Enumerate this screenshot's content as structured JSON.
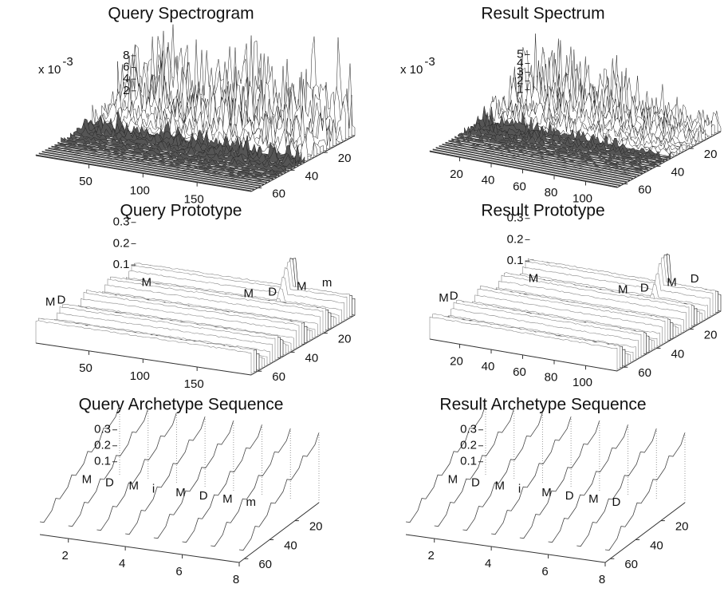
{
  "chart_data": [
    {
      "type": "surface",
      "title": "Query Spectrogram",
      "multiplier": "x 10",
      "multiplier_exponent": "-3",
      "xlim": [
        1,
        200
      ],
      "xticks": [
        50,
        100,
        150
      ],
      "ylim": [
        1,
        64
      ],
      "yticks": [
        20,
        40,
        60
      ],
      "zlim": [
        0,
        15
      ],
      "zticks": [
        2,
        4,
        6,
        8
      ]
    },
    {
      "type": "surface",
      "title": "Result Spectrum",
      "multiplier": "x 10",
      "multiplier_exponent": "-3",
      "xlim": [
        1,
        120
      ],
      "xticks": [
        20,
        40,
        60,
        80,
        100
      ],
      "ylim": [
        1,
        64
      ],
      "yticks": [
        20,
        40,
        60
      ],
      "zlim": [
        0,
        10
      ],
      "zticks": [
        1,
        2,
        3,
        4,
        5
      ]
    },
    {
      "type": "prototype",
      "title": "Query Prototype",
      "annotations": [
        "M",
        "D",
        "M",
        "M",
        "D",
        "M",
        "m"
      ],
      "xlim": [
        1,
        200
      ],
      "xticks": [
        50,
        100,
        150
      ],
      "ylim": [
        1,
        64
      ],
      "yticks": [
        20,
        40,
        60
      ],
      "zlim": [
        0,
        0.6
      ],
      "zticks": [
        0.1,
        0.2,
        0.3
      ]
    },
    {
      "type": "prototype",
      "title": "Result Prototype",
      "annotations": [
        "M",
        "D",
        "M",
        "M",
        "D",
        "M",
        "D"
      ],
      "xlim": [
        1,
        120
      ],
      "xticks": [
        20,
        40,
        60,
        80,
        100
      ],
      "ylim": [
        1,
        64
      ],
      "yticks": [
        20,
        40,
        60
      ],
      "zlim": [
        0,
        0.6
      ],
      "zticks": [
        0.1,
        0.2,
        0.3
      ]
    },
    {
      "type": "sequence",
      "title": "Query Archetype Sequence",
      "annotations": [
        "M",
        "D",
        "M",
        "i",
        "M",
        "D",
        "M",
        "m"
      ],
      "xlim": [
        1,
        8
      ],
      "xticks": [
        2,
        4,
        6,
        8
      ],
      "ylim": [
        1,
        64
      ],
      "yticks": [
        20,
        40,
        60
      ],
      "zlim": [
        0,
        0.8
      ],
      "zticks": [
        0.1,
        0.2,
        0.3
      ]
    },
    {
      "type": "sequence",
      "title": "Result Archetype Sequence",
      "annotations": [
        "M",
        "D",
        "M",
        "i",
        "M",
        "D",
        "M",
        "D"
      ],
      "xlim": [
        1,
        8
      ],
      "xticks": [
        2,
        4,
        6,
        8
      ],
      "ylim": [
        1,
        64
      ],
      "yticks": [
        20,
        40,
        60
      ],
      "zlim": [
        0,
        0.8
      ],
      "zticks": [
        0.1,
        0.2,
        0.3
      ]
    }
  ]
}
